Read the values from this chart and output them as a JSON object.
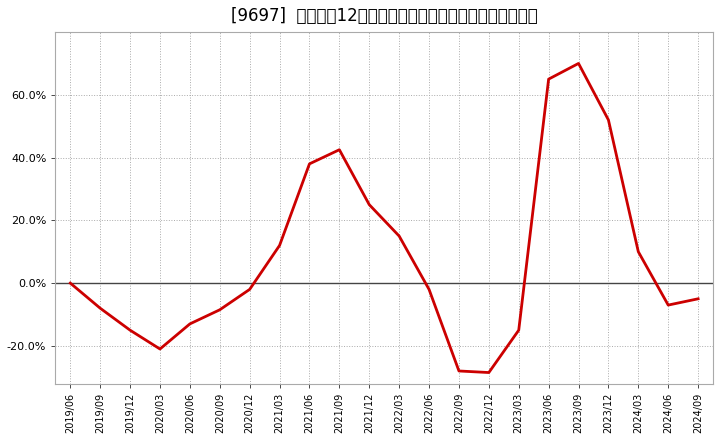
{
  "title": "[9697]  売上高の12か月移動合計の対前年同期増減率の推移",
  "x_labels": [
    "2019/06",
    "2019/09",
    "2019/12",
    "2020/03",
    "2020/06",
    "2020/09",
    "2020/12",
    "2021/03",
    "2021/06",
    "2021/09",
    "2021/12",
    "2022/03",
    "2022/06",
    "2022/09",
    "2022/12",
    "2023/03",
    "2023/06",
    "2023/09",
    "2023/12",
    "2024/03",
    "2024/06",
    "2024/09"
  ],
  "y_values": [
    0.0,
    -8.0,
    -15.0,
    -21.0,
    -13.0,
    -8.5,
    -2.0,
    12.0,
    38.0,
    42.5,
    25.0,
    15.0,
    -2.0,
    -28.0,
    -28.5,
    -15.0,
    65.0,
    70.0,
    52.0,
    10.0,
    -7.0,
    -5.0
  ],
  "line_color": "#cc0000",
  "line_width": 2.0,
  "background_color": "#ffffff",
  "plot_bg_color": "#ffffff",
  "grid_color": "#aaaaaa",
  "zero_line_color": "#444444",
  "ylim": [
    -32,
    80
  ],
  "yticks": [
    -20.0,
    0.0,
    20.0,
    40.0,
    60.0
  ],
  "title_fontsize": 12,
  "tick_fontsize": 8,
  "xtick_fontsize": 7
}
